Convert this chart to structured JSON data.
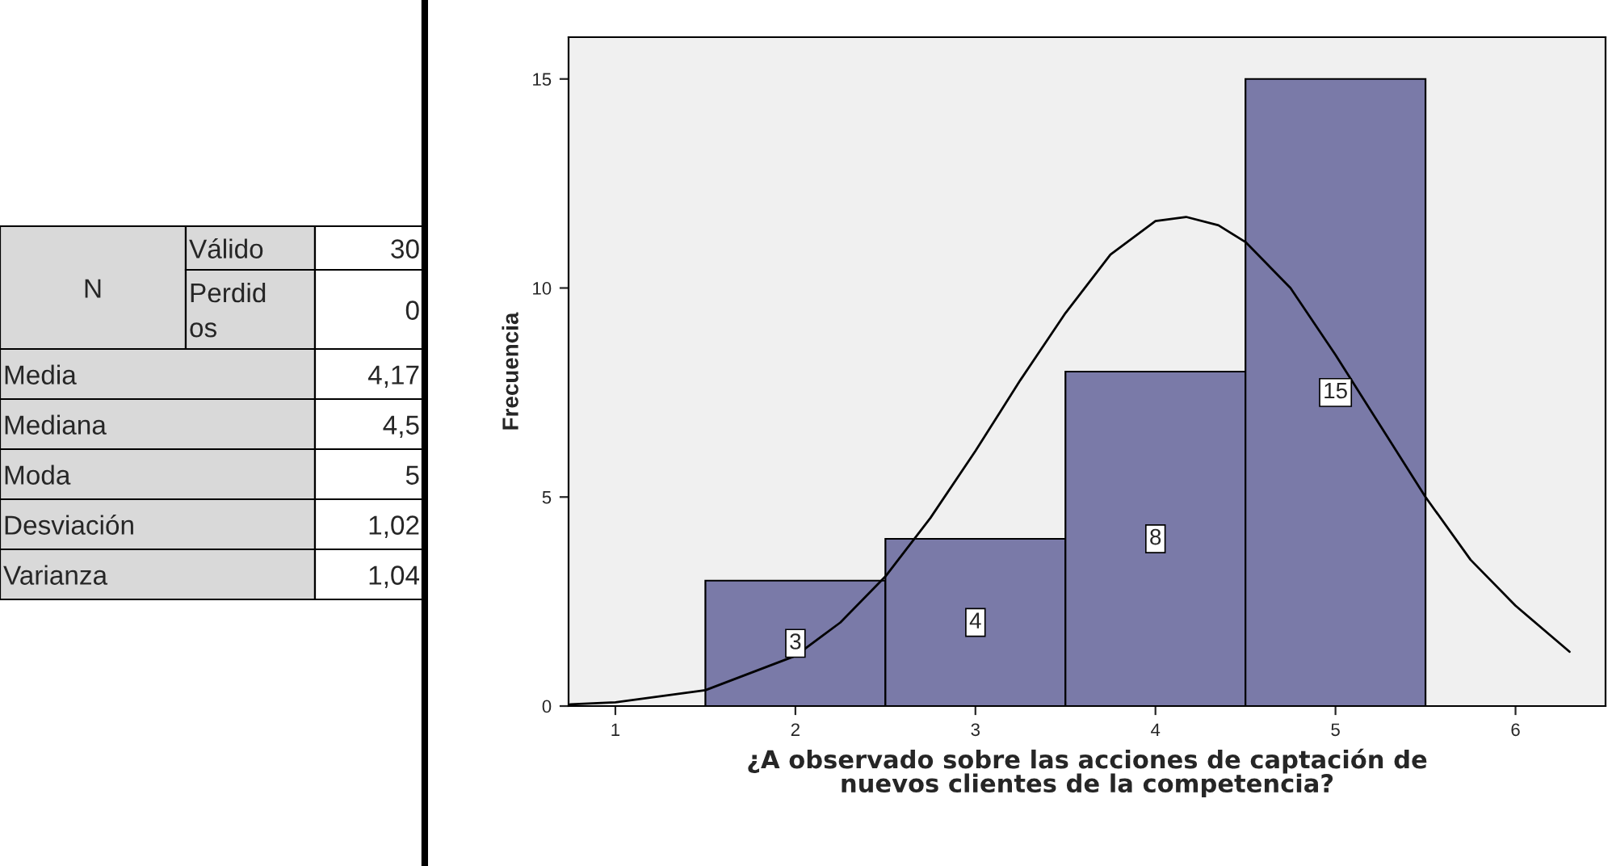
{
  "chart_data": [
    {
      "type": "other",
      "annotations": [
        "N",
        "Válido",
        "30",
        "Perdidos",
        "0",
        "Media",
        "4,17",
        "Mediana",
        "4,5",
        "Moda",
        "5",
        "Desviación",
        "1,02",
        "Varianza",
        "1,04"
      ]
    },
    {
      "type": "histogram",
      "bins": [
        1.5,
        2.5,
        3.5,
        4.5,
        5.5
      ],
      "values": [
        3,
        4,
        8,
        15
      ],
      "color": "#7a7aa8",
      "value_labels": [
        "3",
        "4",
        "8",
        "15"
      ],
      "series": [
        {
          "type": "line",
          "color": "#000000",
          "x": [
            0.75,
            1.0,
            1.5,
            2.0,
            2.25,
            2.5,
            2.75,
            3.0,
            3.25,
            3.5,
            3.75,
            4.0,
            4.17,
            4.35,
            4.5,
            4.75,
            5.0,
            5.25,
            5.5,
            5.75,
            6.0,
            6.3
          ],
          "values": [
            0.04,
            0.09,
            0.38,
            1.2,
            2.0,
            3.1,
            4.5,
            6.1,
            7.8,
            9.4,
            10.8,
            11.6,
            11.7,
            11.5,
            11.1,
            10.0,
            8.4,
            6.7,
            5.0,
            3.5,
            2.4,
            1.3
          ]
        }
      ],
      "xlabel": "¿A observado sobre las acciones de captación de\nnuevos clientes de la competencia?",
      "ylabel": "Frecuencia",
      "xlim": [
        0.74,
        6.5
      ],
      "ylim": [
        0,
        16
      ],
      "xticks": [
        1,
        2,
        3,
        4,
        5,
        6
      ],
      "yticks": [
        0,
        5,
        10,
        15
      ],
      "grid": false
    }
  ]
}
